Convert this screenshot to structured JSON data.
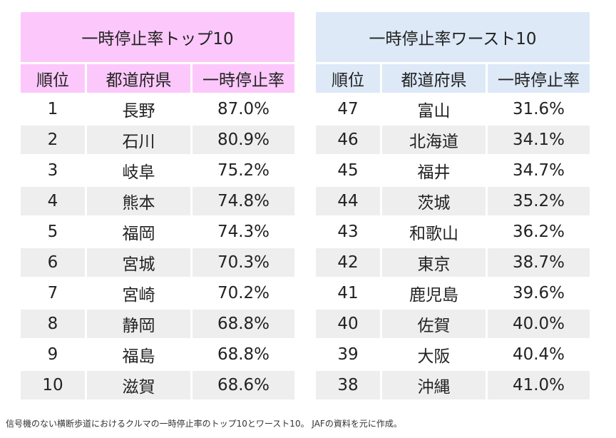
{
  "top": {
    "title": "一時停止率トップ10",
    "headers": [
      "順位",
      "都道府県",
      "一時停止率"
    ],
    "rows": [
      {
        "rank": "1",
        "pref": "長野",
        "rate": "87.0%"
      },
      {
        "rank": "2",
        "pref": "石川",
        "rate": "80.9%"
      },
      {
        "rank": "3",
        "pref": "岐阜",
        "rate": "75.2%"
      },
      {
        "rank": "4",
        "pref": "熊本",
        "rate": "74.8%"
      },
      {
        "rank": "5",
        "pref": "福岡",
        "rate": "74.3%"
      },
      {
        "rank": "6",
        "pref": "宮城",
        "rate": "70.3%"
      },
      {
        "rank": "7",
        "pref": "宮崎",
        "rate": "70.2%"
      },
      {
        "rank": "8",
        "pref": "静岡",
        "rate": "68.8%"
      },
      {
        "rank": "9",
        "pref": "福島",
        "rate": "68.8%"
      },
      {
        "rank": "10",
        "pref": "滋賀",
        "rate": "68.6%"
      }
    ]
  },
  "worst": {
    "title": "一時停止率ワースト10",
    "headers": [
      "順位",
      "都道府県",
      "一時停止率"
    ],
    "rows": [
      {
        "rank": "47",
        "pref": "富山",
        "rate": "31.6%"
      },
      {
        "rank": "46",
        "pref": "北海道",
        "rate": "34.1%"
      },
      {
        "rank": "45",
        "pref": "福井",
        "rate": "34.7%"
      },
      {
        "rank": "44",
        "pref": "茨城",
        "rate": "35.2%"
      },
      {
        "rank": "43",
        "pref": "和歌山",
        "rate": "36.2%"
      },
      {
        "rank": "42",
        "pref": "東京",
        "rate": "38.7%"
      },
      {
        "rank": "41",
        "pref": "鹿児島",
        "rate": "39.6%"
      },
      {
        "rank": "40",
        "pref": "佐賀",
        "rate": "40.0%"
      },
      {
        "rank": "39",
        "pref": "大阪",
        "rate": "40.4%"
      },
      {
        "rank": "38",
        "pref": "沖縄",
        "rate": "41.0%"
      }
    ]
  },
  "caption": "信号機のない横断歩道におけるクルマの一時停止率のトップ10とワースト10。 JAFの資料を元に作成。",
  "colors": {
    "top_header": "#fcc8fb",
    "worst_header": "#dde9f7",
    "stripe": "#eeeeee"
  }
}
